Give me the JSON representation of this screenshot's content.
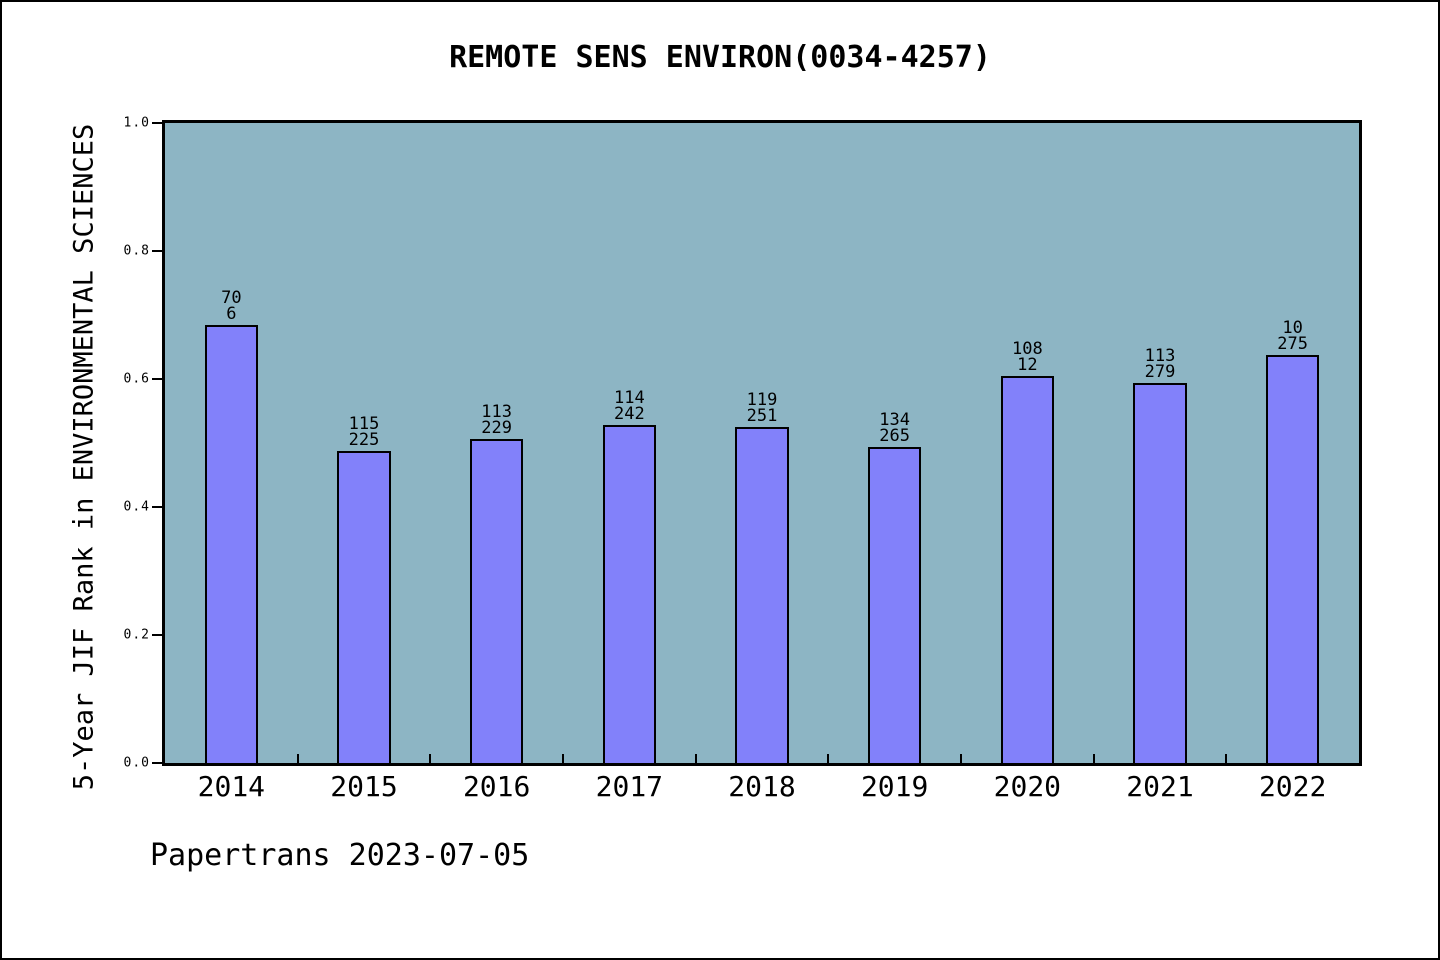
{
  "footer": "Papertrans 2023-07-05",
  "chart_data": {
    "type": "bar",
    "title": "REMOTE SENS ENVIRON(0034-4257)",
    "xlabel": "",
    "ylabel": "5-Year JIF Rank in ENVIRONMENTAL SCIENCES",
    "categories": [
      "2014",
      "2015",
      "2016",
      "2017",
      "2018",
      "2019",
      "2020",
      "2021",
      "2022"
    ],
    "values": [
      0.685,
      0.488,
      0.506,
      0.528,
      0.525,
      0.494,
      0.605,
      0.594,
      0.637
    ],
    "bar_labels": [
      [
        "70",
        "6"
      ],
      [
        "115",
        "225"
      ],
      [
        "113",
        "229"
      ],
      [
        "114",
        "242"
      ],
      [
        "119",
        "251"
      ],
      [
        "134",
        "265"
      ],
      [
        "108",
        "12"
      ],
      [
        "113",
        "279"
      ],
      [
        "10",
        "275"
      ]
    ],
    "ylim": [
      0.0,
      1.0
    ],
    "yticks": [
      "0.0",
      "0.2",
      "0.4",
      "0.6",
      "0.8",
      "1.0"
    ],
    "grid": false,
    "legend": "none",
    "bar_width_fraction": 0.4,
    "colors": {
      "bar_fill": "#8281fa",
      "bar_border": "#000000",
      "plot_background": "#8db5c4",
      "page_background": "#ffffff",
      "text": "#000000"
    }
  }
}
